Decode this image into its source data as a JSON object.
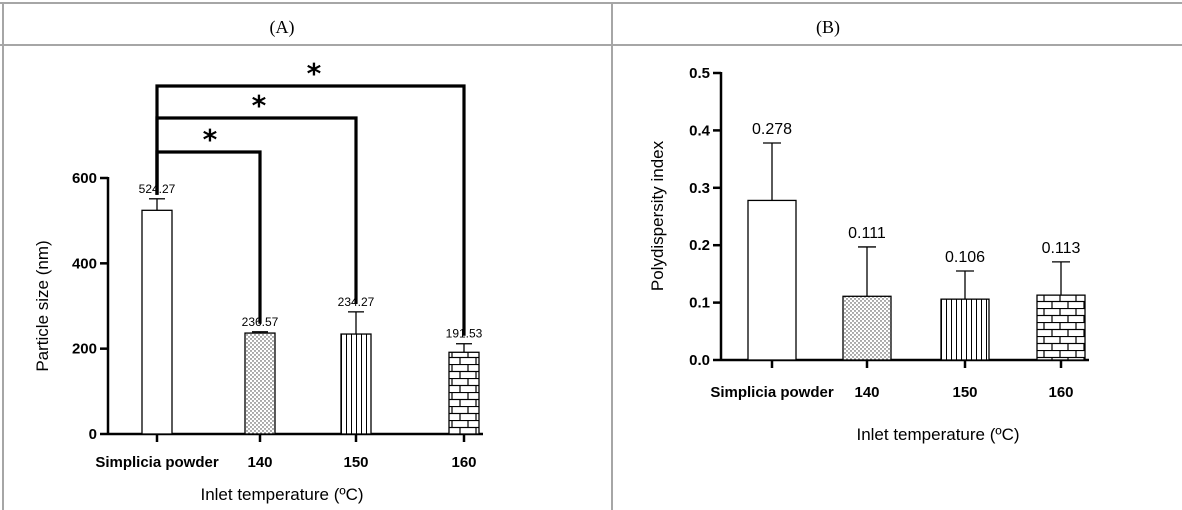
{
  "panels": {
    "A": {
      "label": "(A)"
    },
    "B": {
      "label": "(B)"
    }
  },
  "chart_data": [
    {
      "type": "bar",
      "panel": "A",
      "categories": [
        "Simplicia powder",
        "140",
        "150",
        "160"
      ],
      "values": [
        524.27,
        236.57,
        234.27,
        191.53
      ],
      "error_bars": [
        27,
        3,
        52,
        20
      ],
      "data_labels": [
        "524.27",
        "236.57",
        "234.27",
        "191.53"
      ],
      "patterns": [
        "blank",
        "dots",
        "vertical-lines",
        "bricks"
      ],
      "ylabel": "Particle size (nm)",
      "xlabel": "Inlet temperature (ºC)",
      "ylim": [
        0,
        600
      ],
      "yticks": [
        "0",
        "200",
        "400",
        "600"
      ],
      "significance": [
        {
          "from": "Simplicia powder",
          "to": "140",
          "marker": "*"
        },
        {
          "from": "Simplicia powder",
          "to": "150",
          "marker": "*"
        },
        {
          "from": "Simplicia powder",
          "to": "160",
          "marker": "*"
        }
      ],
      "grid": false
    },
    {
      "type": "bar",
      "panel": "B",
      "categories": [
        "Simplicia powder",
        "140",
        "150",
        "160"
      ],
      "values": [
        0.278,
        0.111,
        0.106,
        0.113
      ],
      "error_bars": [
        0.1,
        0.086,
        0.049,
        0.058
      ],
      "data_labels": [
        "0.278",
        "0.111",
        "0.106",
        "0.113"
      ],
      "patterns": [
        "blank",
        "dots",
        "vertical-lines",
        "bricks"
      ],
      "ylabel": "Polydispersity index",
      "xlabel": "Inlet temperature (ºC)",
      "ylim": [
        0,
        0.5
      ],
      "yticks": [
        "0.0",
        "0.1",
        "0.2",
        "0.3",
        "0.4",
        "0.5"
      ],
      "grid": false
    }
  ]
}
